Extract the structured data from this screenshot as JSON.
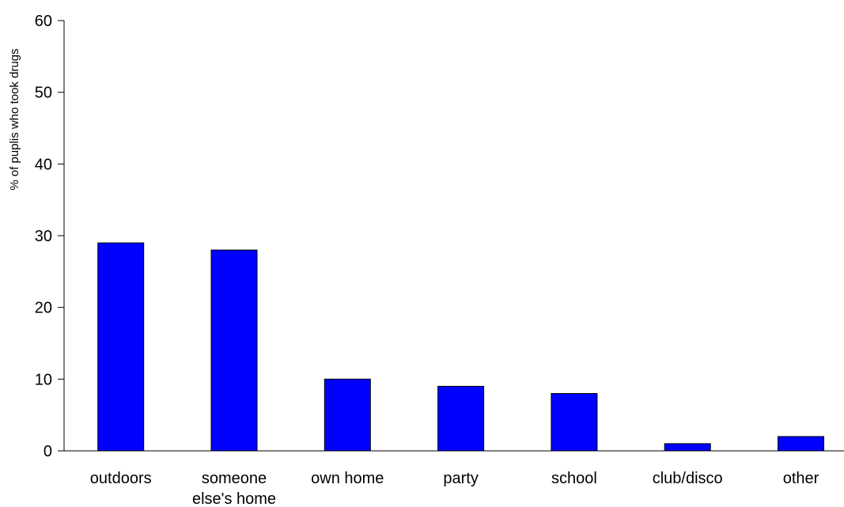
{
  "chart_data": {
    "type": "bar",
    "title": "",
    "xlabel": "",
    "ylabel": "% of puplis who took drugs",
    "ylim": [
      0,
      60
    ],
    "yticks": [
      0,
      10,
      20,
      30,
      40,
      50,
      60
    ],
    "grid": false,
    "legend": "none",
    "categories": [
      [
        "outdoors"
      ],
      [
        "someone",
        "else's home"
      ],
      [
        "own home"
      ],
      [
        "party"
      ],
      [
        "school"
      ],
      [
        "club/disco"
      ],
      [
        "other"
      ]
    ],
    "values": [
      29,
      28,
      10,
      9,
      8,
      1,
      2
    ],
    "colors": {
      "bar": "#0000ff",
      "bar_edge": "#000000",
      "axis": "#000000"
    }
  }
}
